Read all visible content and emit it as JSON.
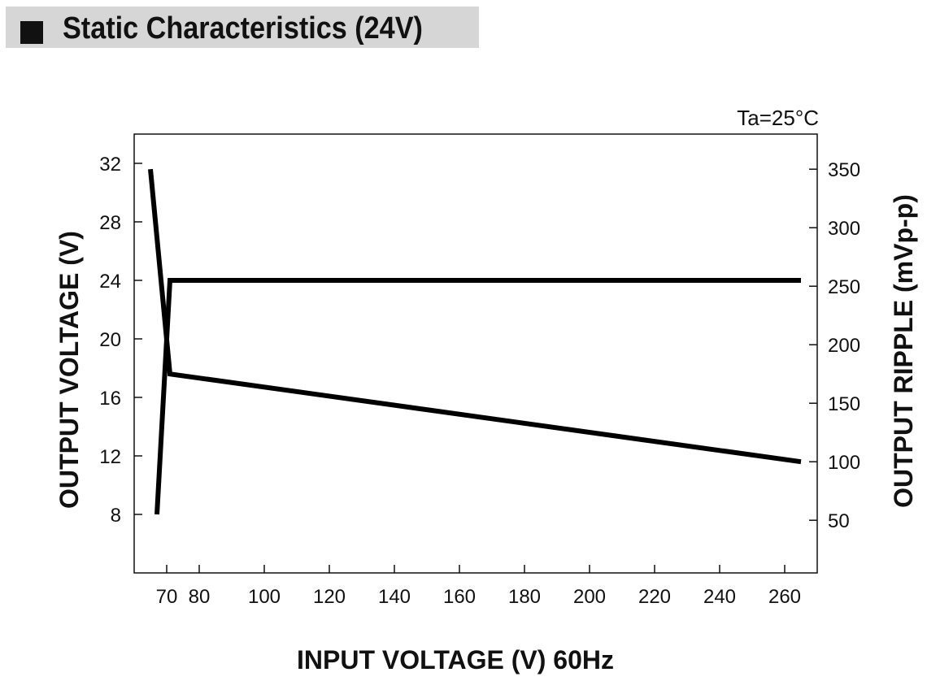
{
  "page": {
    "title": "Static Characteristics (24V)"
  },
  "chart_data": {
    "type": "line",
    "annotation": "Ta=25°C",
    "xlabel": "INPUT VOLTAGE (V) 60Hz",
    "ylabel_left": "OUTPUT VOLTAGE (V)",
    "ylabel_right": "OUTPUT RIPPLE (mVp-p)",
    "xlim": [
      60,
      270
    ],
    "ylim_left": [
      4,
      34
    ],
    "ylim_right": [
      5,
      380
    ],
    "x_ticks": [
      70,
      80,
      100,
      120,
      140,
      160,
      180,
      200,
      220,
      240,
      260
    ],
    "y_left_ticks": [
      8,
      12,
      16,
      20,
      24,
      28,
      32
    ],
    "y_right_ticks": [
      50,
      100,
      150,
      200,
      250,
      300,
      350
    ],
    "grid": false,
    "series": [
      {
        "axis": "left",
        "color": "#000000",
        "points": [
          [
            67,
            8
          ],
          [
            71,
            24
          ],
          [
            80,
            24
          ],
          [
            265,
            24
          ]
        ]
      },
      {
        "axis": "right",
        "color": "#000000",
        "points": [
          [
            65,
            350
          ],
          [
            71,
            175
          ],
          [
            265,
            100
          ]
        ]
      }
    ]
  }
}
